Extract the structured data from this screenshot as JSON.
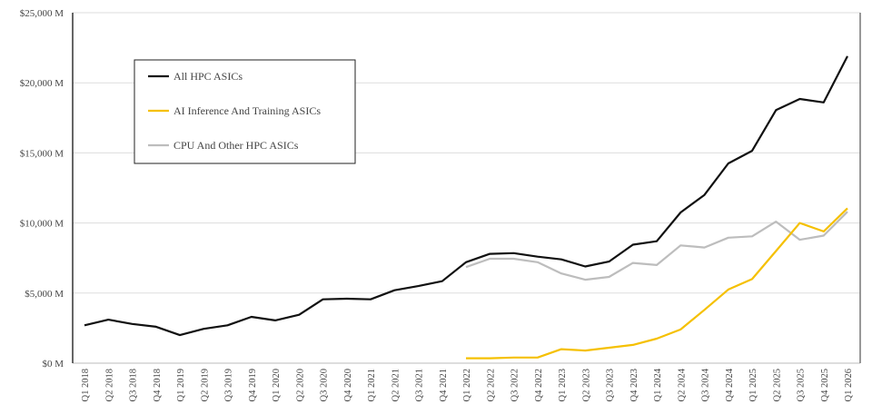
{
  "chart_data": {
    "type": "line",
    "title": "",
    "xlabel": "",
    "ylabel": "",
    "ylim": [
      0,
      25000
    ],
    "y_ticks": [
      0,
      5000,
      10000,
      15000,
      20000,
      25000
    ],
    "y_tick_labels": [
      "$0 M",
      "$5,000 M",
      "$10,000 M",
      "$15,000 M",
      "$20,000 M",
      "$25,000 M"
    ],
    "grid": true,
    "legend_position": "top-left",
    "categories": [
      "Q1 2018",
      "Q2 2018",
      "Q3 2018",
      "Q4 2018",
      "Q1 2019",
      "Q2 2019",
      "Q3 2019",
      "Q4 2019",
      "Q1 2020",
      "Q2 2020",
      "Q3 2020",
      "Q4 2020",
      "Q1 2021",
      "Q2 2021",
      "Q3 2021",
      "Q4 2021",
      "Q1 2022",
      "Q2 2022",
      "Q3 2022",
      "Q4 2022",
      "Q1 2023",
      "Q2 2023",
      "Q3 2023",
      "Q4 2023",
      "Q1 2024",
      "Q2 2024",
      "Q3 2024",
      "Q4 2024",
      "Q1 2025",
      "Q2 2025",
      "Q3 2025",
      "Q4 2025",
      "Q1 2026"
    ],
    "series": [
      {
        "name": "All HPC ASICs",
        "color": "#111111",
        "values": [
          2700,
          3100,
          2800,
          2600,
          2000,
          2450,
          2700,
          3300,
          3050,
          3450,
          4550,
          4600,
          4550,
          5200,
          5500,
          5850,
          7200,
          7800,
          7850,
          7600,
          7400,
          6900,
          7250,
          8450,
          8700,
          10750,
          12000,
          14250,
          15150,
          18050,
          18850,
          18600,
          21900
        ]
      },
      {
        "name": "AI Inference And Training ASICs",
        "color": "#f5c000",
        "values": [
          null,
          null,
          null,
          null,
          null,
          null,
          null,
          null,
          null,
          null,
          null,
          null,
          null,
          null,
          null,
          null,
          350,
          350,
          400,
          400,
          1000,
          900,
          1100,
          1300,
          1750,
          2400,
          3800,
          5250,
          6000,
          8000,
          10000,
          9400,
          11050
        ]
      },
      {
        "name": "CPU And Other HPC ASICs",
        "color": "#bdbdbd",
        "values": [
          null,
          null,
          null,
          null,
          null,
          null,
          null,
          null,
          null,
          null,
          null,
          null,
          null,
          null,
          null,
          null,
          6850,
          7450,
          7450,
          7200,
          6400,
          5950,
          6150,
          7150,
          7000,
          8400,
          8250,
          8950,
          9050,
          10100,
          8800,
          9100,
          10800
        ]
      }
    ]
  }
}
